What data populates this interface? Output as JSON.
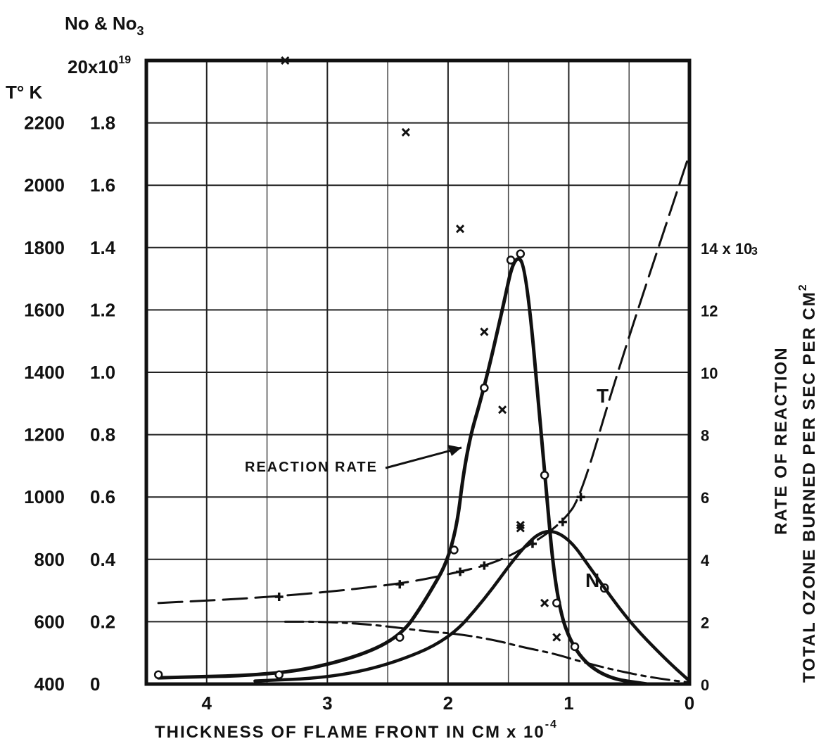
{
  "chart_data": {
    "type": "line",
    "xlabel": "THICKNESS OF FLAME FRONT IN CM",
    "xlabel_exponent": "x 10",
    "xlabel_exponent_power": "-4",
    "x_direction": "reversed",
    "xlim": [
      4.5,
      0
    ],
    "x_ticks": [
      "4",
      "3",
      "2",
      "1",
      "0"
    ],
    "x_tick_values": [
      4,
      3,
      2,
      1,
      0
    ],
    "grid": true,
    "left_axis_inner": {
      "title": "No & No",
      "title_subscript": "3",
      "top_tick": "20x10",
      "top_tick_exponent": "19",
      "ticks": [
        "0",
        "0.2",
        "0.4",
        "0.6",
        "0.8",
        "1.0",
        "1.2",
        "1.4",
        "1.6",
        "1.8"
      ],
      "ylim": [
        0,
        2.0
      ]
    },
    "left_axis_outer": {
      "title": "T° K",
      "ticks": [
        "400",
        "600",
        "800",
        "1000",
        "1200",
        "1400",
        "1600",
        "1800",
        "2000",
        "2200"
      ],
      "ylim": [
        400,
        2400
      ]
    },
    "right_axis": {
      "label_line1": "RATE OF REACTION",
      "label_line2": "TOTAL OZONE BURNED PER SEC PER CM",
      "label_superscript": "2",
      "ticks": [
        "0",
        "2",
        "4",
        "6",
        "8",
        "10",
        "12",
        "14 x 10"
      ],
      "top_tick_exponent": "3",
      "ylim": [
        0,
        20
      ]
    },
    "annotations": {
      "reaction_rate": "REACTION RATE",
      "temperature": "T",
      "no_label": "N",
      "no_label_subscript": "O"
    },
    "series": [
      {
        "name": "T",
        "axis": "left_outer",
        "x": [
          4.4,
          3.4,
          2.4,
          1.9,
          1.6,
          1.3,
          1.05,
          0.9,
          0.6,
          0
        ],
        "y": [
          660,
          680,
          720,
          760,
          790,
          850,
          920,
          1000,
          1400,
          2100
        ]
      },
      {
        "name": "N",
        "axis": "left_inner",
        "x": [
          3.35,
          3.0,
          2.6,
          2.2,
          1.9,
          1.6,
          1.4,
          1.25,
          1.1,
          0.9,
          0.6,
          0.3,
          0
        ],
        "y": [
          0.2,
          0.2,
          0.19,
          0.17,
          0.16,
          0.14,
          0.12,
          0.108,
          0.095,
          0.072,
          0.043,
          0.02,
          0.005
        ]
      },
      {
        "name": "REACTION RATE",
        "axis": "right",
        "x": [
          4.4,
          3.4,
          2.8,
          2.4,
          2.2,
          1.95,
          1.85,
          1.7,
          1.55,
          1.45,
          1.35,
          1.2,
          1.1,
          0.95,
          0.7,
          0.35
        ],
        "y": [
          0.2,
          0.3,
          0.8,
          1.5,
          2.6,
          4.3,
          7.5,
          9.5,
          12.0,
          13.8,
          13.4,
          6.7,
          2.6,
          1.0,
          0.2,
          0
        ]
      },
      {
        "name": "N",
        "axis": "left_inner",
        "x": [
          3.6,
          3.0,
          2.5,
          2.0,
          1.7,
          1.4,
          1.2,
          1.0,
          0.8,
          0.5,
          0.2,
          0
        ],
        "y": [
          0.01,
          0.02,
          0.06,
          0.14,
          0.27,
          0.43,
          0.5,
          0.47,
          0.36,
          0.2,
          0.08,
          0.01
        ]
      }
    ],
    "markers": {
      "T": {
        "x": [
          3.4,
          2.4,
          1.9,
          1.7,
          1.3,
          1.05,
          0.9
        ],
        "y": [
          680,
          720,
          760,
          780,
          850,
          920,
          1000
        ],
        "symbol": "+"
      },
      "NO3": {
        "x": [
          3.35,
          2.35,
          1.9,
          1.7,
          1.55,
          1.4,
          1.4,
          1.2,
          1.1
        ],
        "y": [
          2.0,
          1.77,
          1.46,
          1.13,
          0.88,
          0.51,
          0.5,
          0.26,
          0.15
        ],
        "symbol": "x"
      },
      "REACTION RATE": {
        "x": [
          4.4,
          3.4,
          2.4,
          1.95,
          1.7,
          1.48,
          1.4,
          1.2,
          1.1,
          0.95
        ],
        "y": [
          0.3,
          0.3,
          1.5,
          4.3,
          9.5,
          13.6,
          13.8,
          6.7,
          2.6,
          1.2
        ],
        "symbol": "o"
      }
    }
  }
}
